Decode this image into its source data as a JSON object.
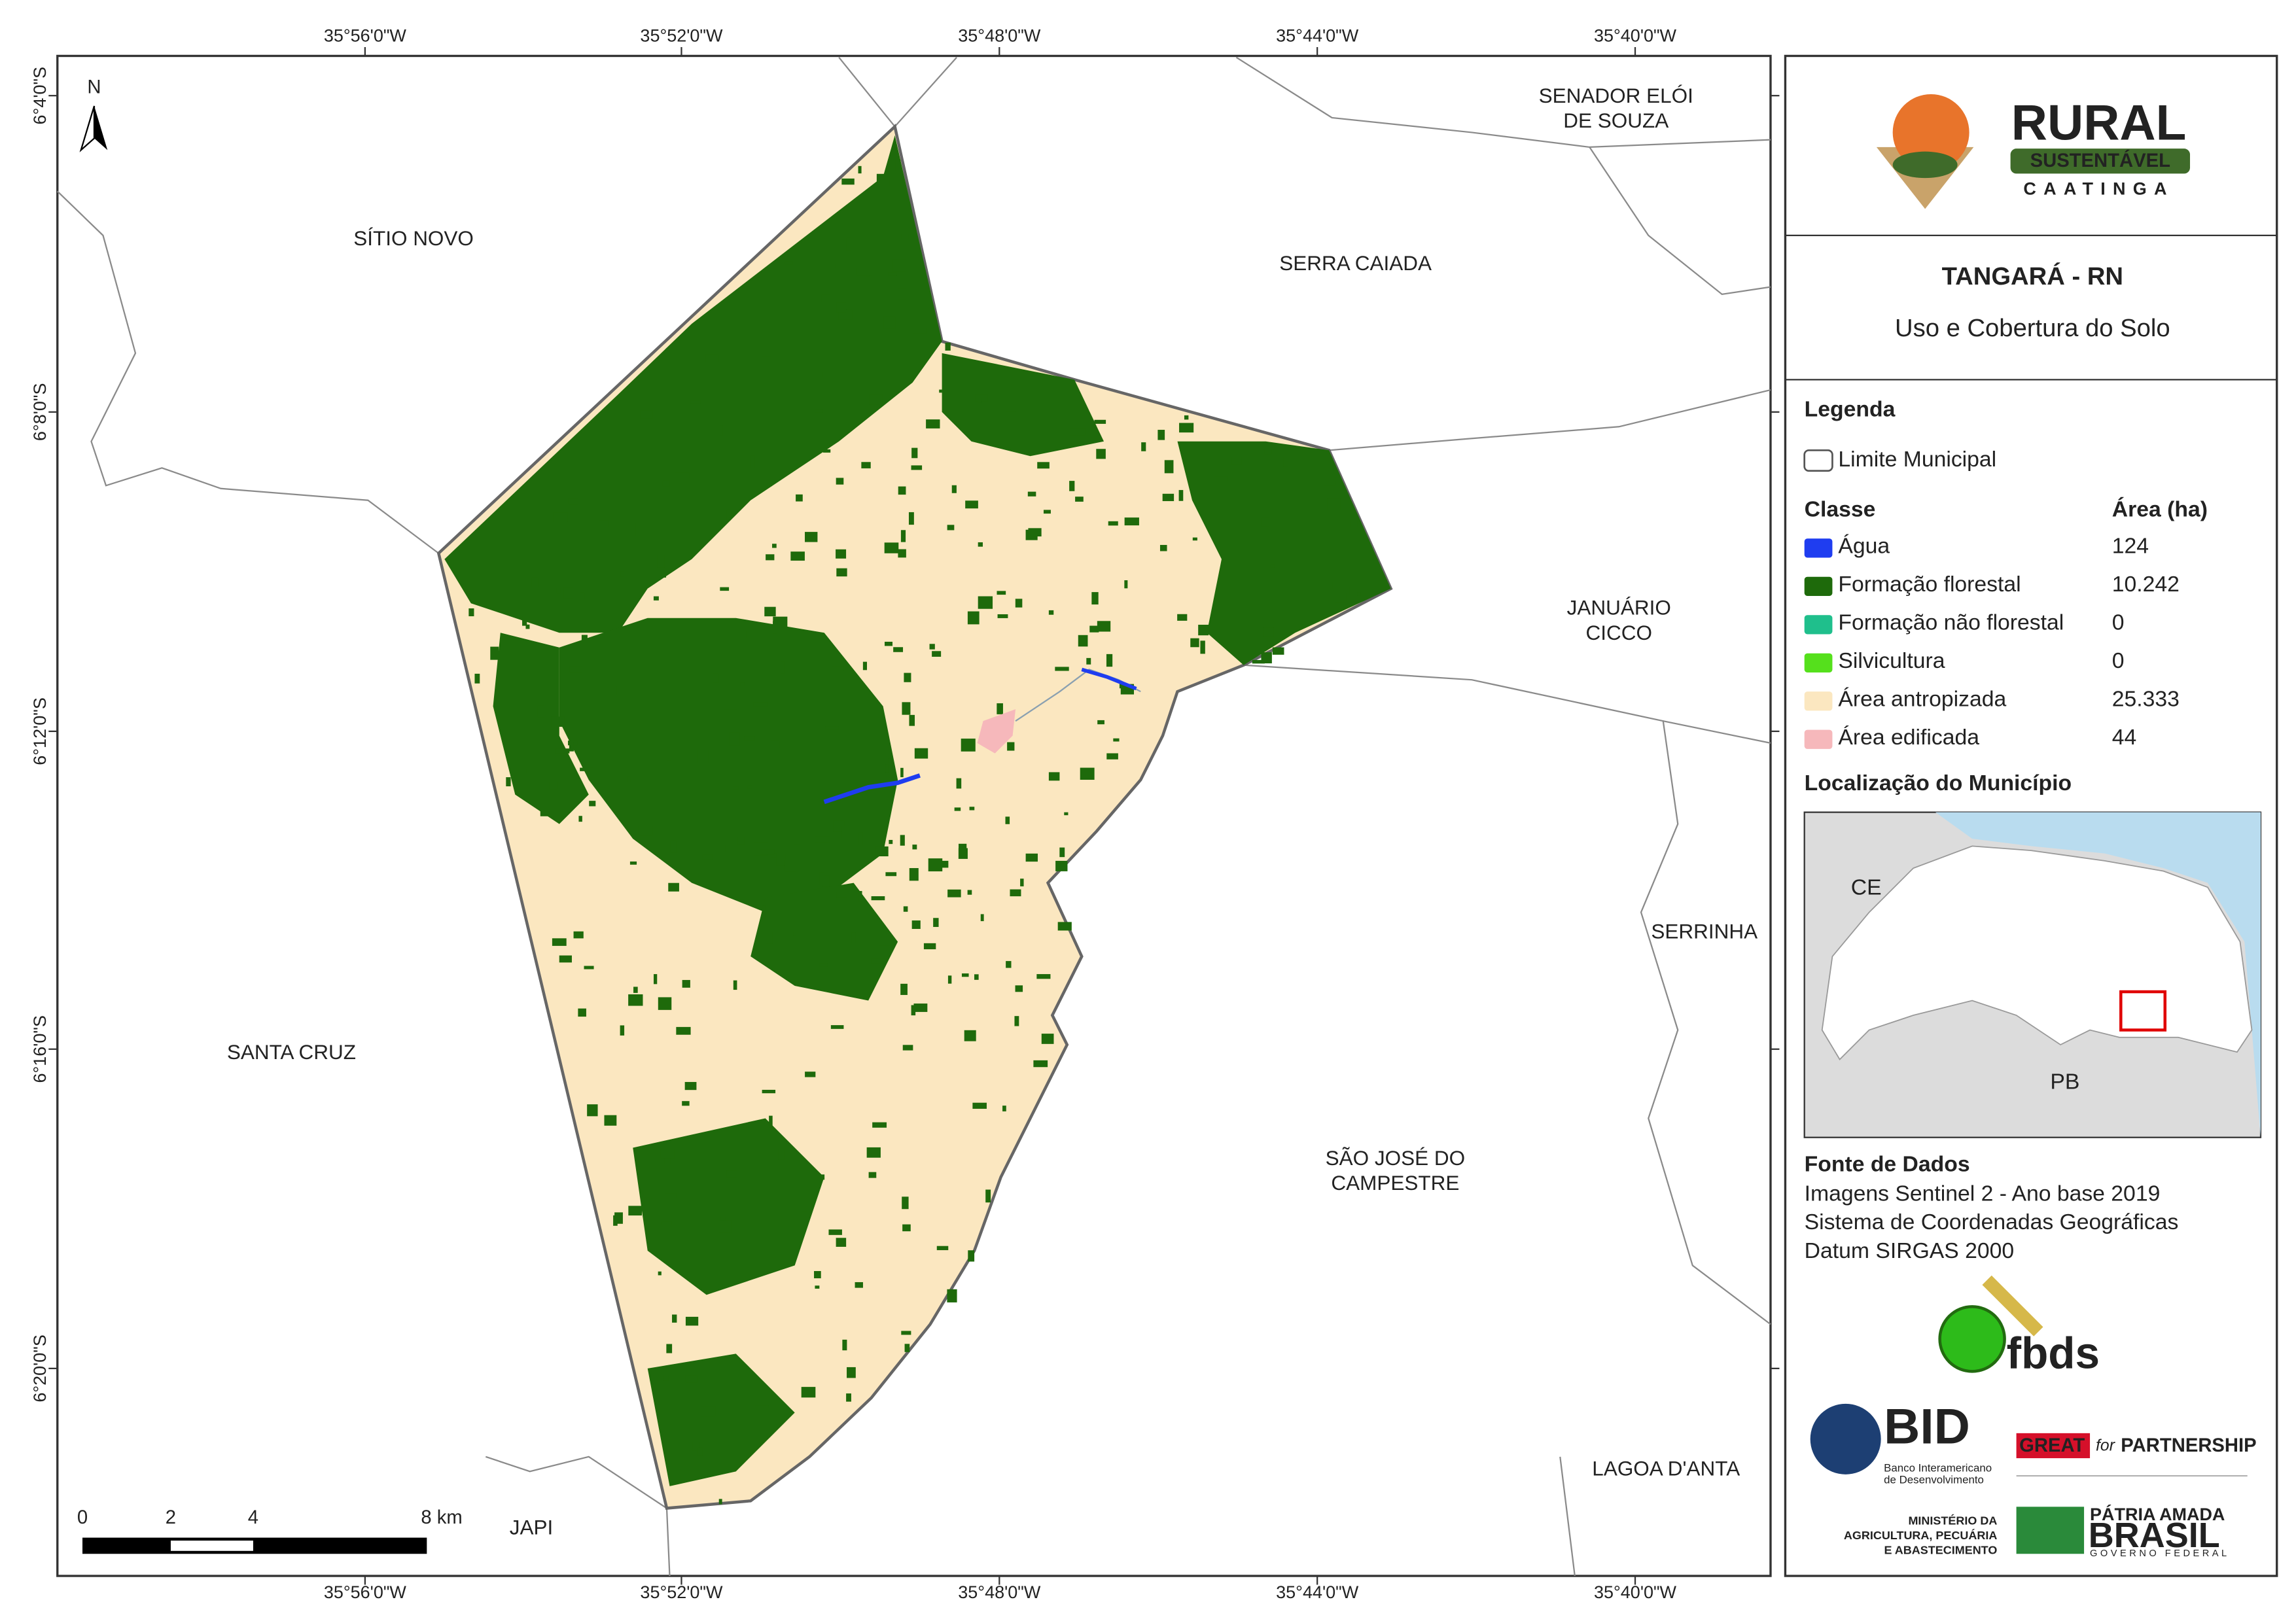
{
  "map": {
    "north_arrow": "N",
    "lon_labels": [
      "35°56'0\"W",
      "35°52'0\"W",
      "35°48'0\"W",
      "35°44'0\"W",
      "35°40'0\"W"
    ],
    "lat_labels": [
      "6°4'0\"S",
      "6°8'0\"S",
      "6°12'0\"S",
      "6°16'0\"S",
      "6°20'0\"S"
    ],
    "places": [
      [
        "SENADOR ELÓI",
        "DE SOUZA"
      ],
      [
        "SÍTIO NOVO"
      ],
      [
        "SERRA CAIADA"
      ],
      [
        "JANUÁRIO",
        "CICCO"
      ],
      [
        "SERRINHA"
      ],
      [
        "SANTA CRUZ"
      ],
      [
        "SÃO JOSÉ DO",
        "CAMPESTRE"
      ],
      [
        "LAGOA D'ANTA"
      ],
      [
        "JAPI"
      ]
    ],
    "scale_labels": [
      "0",
      "2",
      "4",
      "8 km"
    ]
  },
  "header": {
    "logo": {
      "title": "RURAL",
      "subtitle": "SUSTENTÁVEL",
      "region": "CAATINGA"
    },
    "title": "TANGARÁ - RN",
    "subtitle": "Uso e Cobertura do Solo"
  },
  "legend": {
    "title": "Legenda",
    "boundary": "Limite Municipal",
    "class_header": "Classe",
    "area_header": "Área (ha)",
    "classes": [
      {
        "name": "Água",
        "area": "124",
        "color": "#1f3df0"
      },
      {
        "name": "Formação florestal",
        "area": "10.242",
        "color": "#1e6a0b"
      },
      {
        "name": "Formação não florestal",
        "area": "0",
        "color": "#1fbf8c"
      },
      {
        "name": "Silvicultura",
        "area": "0",
        "color": "#55e01c"
      },
      {
        "name": "Área antropizada",
        "area": "25.333",
        "color": "#fbe7c0"
      },
      {
        "name": "Área edificada",
        "area": "44",
        "color": "#f6b8bb"
      }
    ]
  },
  "locator": {
    "title": "Localização do Município",
    "labels": [
      "CE",
      "PB"
    ]
  },
  "sources": {
    "title": "Fonte de Dados",
    "lines": [
      "Imagens Sentinel 2 - Ano base 2019",
      "Sistema de Coordenadas Geográficas",
      "Datum SIRGAS 2000"
    ]
  },
  "partners": {
    "fbds": "fbds",
    "bid": "BID",
    "bid_name": [
      "Banco Interamericano",
      "de Desenvolvimento"
    ],
    "great": "GREAT",
    "great_for": "for",
    "great_partnership": "PARTNERSHIP",
    "ministry": [
      "MINISTÉRIO DA",
      "AGRICULTURA, PECUÁRIA",
      "E ABASTECIMENTO"
    ],
    "brasil_top": "PÁTRIA AMADA",
    "brasil": "BRASIL",
    "brasil_gov": "GOVERNO FEDERAL"
  }
}
